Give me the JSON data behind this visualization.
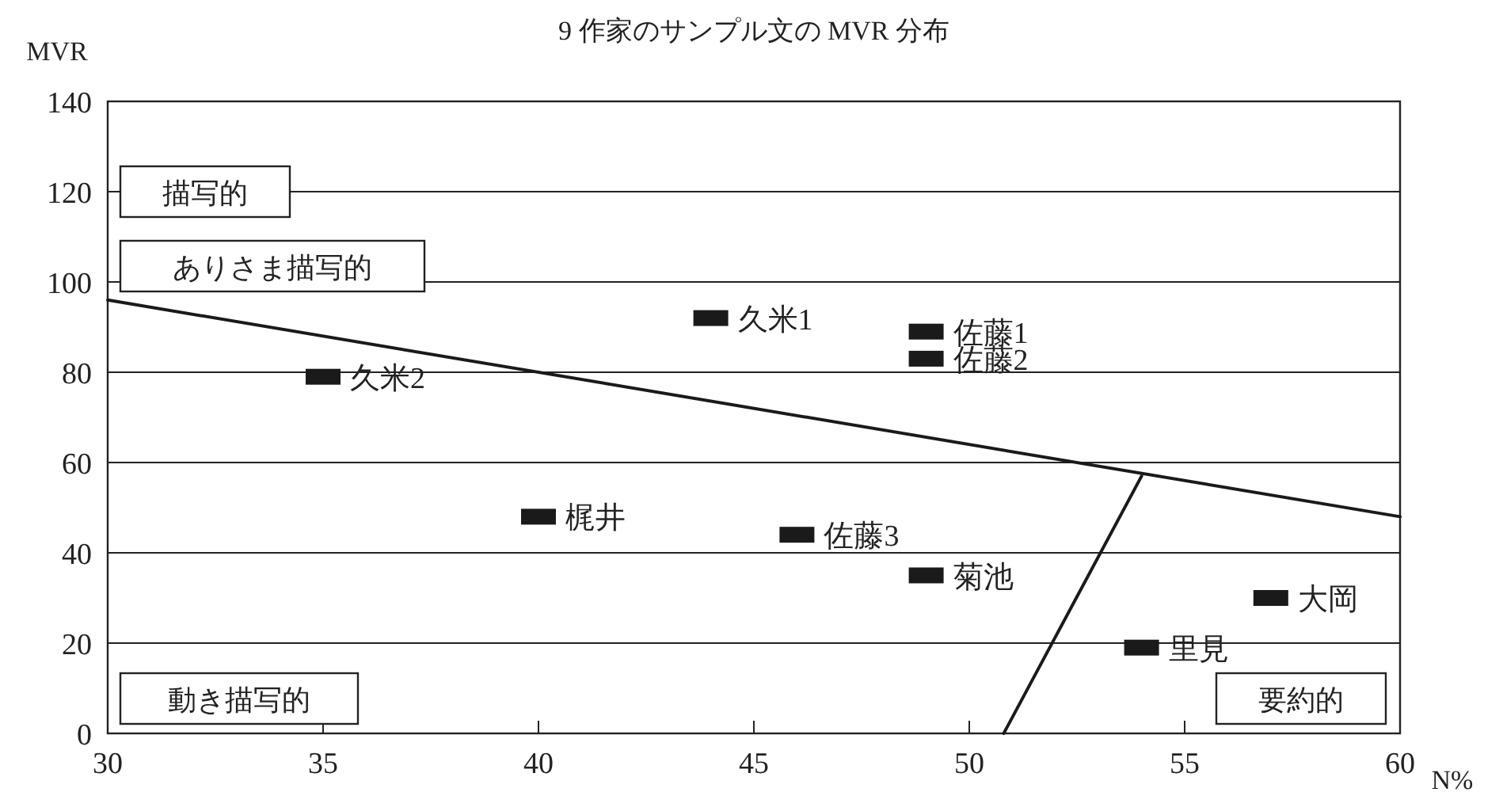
{
  "chart_data": {
    "type": "scatter",
    "title": "9 作家のサンプル文の MVR 分布",
    "xlabel": "N%",
    "ylabel": "MVR",
    "xlim": [
      30,
      60
    ],
    "ylim": [
      0,
      140
    ],
    "xticks": [
      30,
      35,
      40,
      45,
      50,
      55,
      60
    ],
    "yticks": [
      0,
      20,
      40,
      60,
      80,
      100,
      120,
      140
    ],
    "grid": "y",
    "annotations": [
      "描写的",
      "ありさま描写的",
      "動き描写的",
      "要約的"
    ],
    "series": [
      {
        "name": "久米1",
        "color": "#1a1a1a",
        "marker": "square",
        "x": [
          44
        ],
        "values": [
          92
        ]
      },
      {
        "name": "佐藤1",
        "color": "#1a1a1a",
        "marker": "square",
        "x": [
          49
        ],
        "values": [
          89
        ]
      },
      {
        "name": "佐藤2",
        "color": "#1a1a1a",
        "marker": "square",
        "x": [
          49
        ],
        "values": [
          83
        ]
      },
      {
        "name": "久米2",
        "color": "#1a1a1a",
        "marker": "square",
        "x": [
          35
        ],
        "values": [
          79
        ]
      },
      {
        "name": "梶井",
        "color": "#1a1a1a",
        "marker": "square",
        "x": [
          40
        ],
        "values": [
          48
        ]
      },
      {
        "name": "佐藤3",
        "color": "#1a1a1a",
        "marker": "square",
        "x": [
          46
        ],
        "values": [
          44
        ]
      },
      {
        "name": "菊池",
        "color": "#1a1a1a",
        "marker": "square",
        "x": [
          49
        ],
        "values": [
          35
        ]
      },
      {
        "name": "大岡",
        "color": "#1a1a1a",
        "marker": "square",
        "x": [
          57
        ],
        "values": [
          30
        ]
      },
      {
        "name": "里見",
        "color": "#1a1a1a",
        "marker": "square",
        "x": [
          54
        ],
        "values": [
          19
        ]
      },
      {
        "type": "line",
        "color": "#1a1a1a",
        "x": [
          30,
          60
        ],
        "values": [
          96,
          48
        ]
      },
      {
        "type": "line",
        "color": "#1a1a1a",
        "x": [
          50.8,
          54
        ],
        "values": [
          0,
          57
        ]
      }
    ]
  }
}
